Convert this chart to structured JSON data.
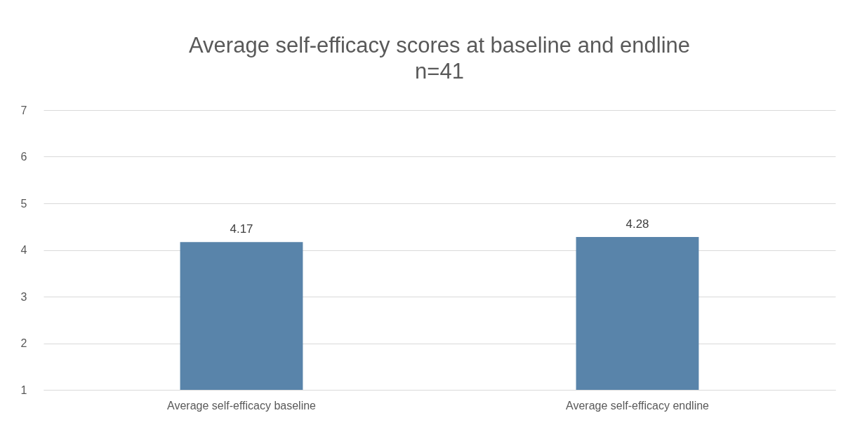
{
  "chart_data": {
    "type": "bar",
    "title": "Average self-efficacy scores at baseline and endline",
    "subtitle": "n=41",
    "categories": [
      "Average self-efficacy baseline",
      "Average self-efficacy endline"
    ],
    "values": [
      4.17,
      4.28
    ],
    "color": "#5984aa",
    "ylim": [
      1,
      7
    ],
    "yticks": [
      1,
      2,
      3,
      4,
      5,
      6,
      7
    ],
    "grid": "y",
    "data_labels": true
  }
}
